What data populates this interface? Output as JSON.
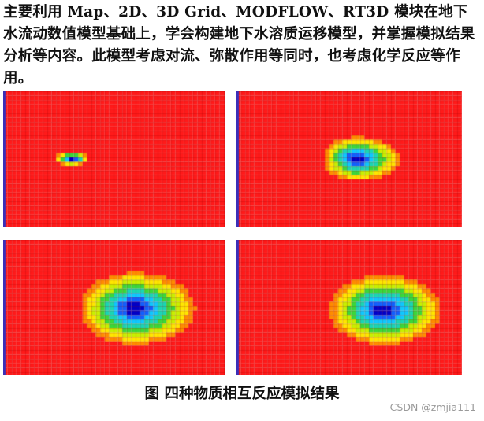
{
  "intro_text": "主要利用 Map、2D、3D Grid、MODFLOW、RT3D 模块在地下水流动数值模型基础上，学会构建地下水溶质运移模型，并掌握模拟结果分析等内容。此模型考虑对流、弥散作用等同时，也考虑化学反应等作用。",
  "figure": {
    "caption": "图  四种物质相互反应模拟结果",
    "panels": [
      {
        "id": "species-1",
        "plume_level": "small"
      },
      {
        "id": "species-2",
        "plume_level": "medium"
      },
      {
        "id": "species-3",
        "plume_level": "large"
      },
      {
        "id": "species-4",
        "plume_level": "large"
      }
    ],
    "color_scale": [
      "#ff1a1a",
      "#ff8c00",
      "#ffe600",
      "#c8f000",
      "#3ad83a",
      "#19d6b4",
      "#0ec8ff",
      "#1060ff",
      "#0000c8"
    ]
  },
  "watermark": "CSDN @zmjia111"
}
